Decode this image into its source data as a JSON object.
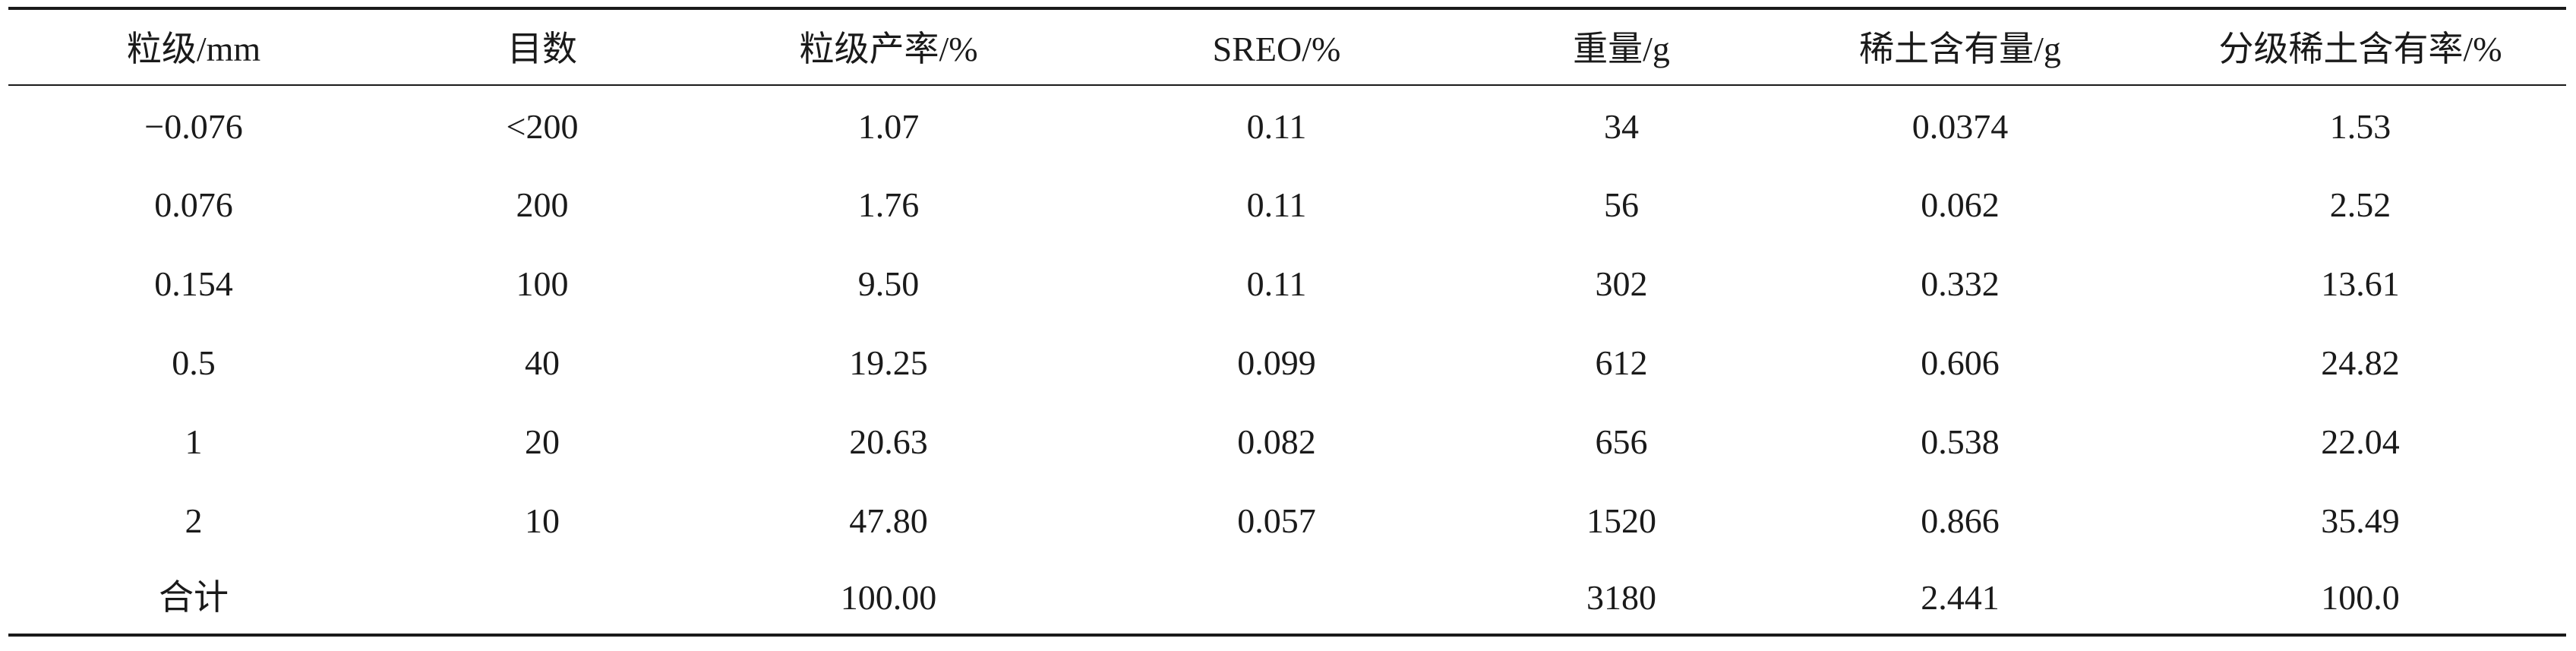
{
  "table": {
    "header": [
      "粒级/mm",
      "目数",
      "粒级产率/%",
      "SREO/%",
      "重量/g",
      "稀土含有量/g",
      "分级稀土含有率/%"
    ],
    "rows": [
      [
        "−0.076",
        "<200",
        "1.07",
        "0.11",
        "34",
        "0.0374",
        "1.53"
      ],
      [
        "0.076",
        "200",
        "1.76",
        "0.11",
        "56",
        "0.062",
        "2.52"
      ],
      [
        "0.154",
        "100",
        "9.50",
        "0.11",
        "302",
        "0.332",
        "13.61"
      ],
      [
        "0.5",
        "40",
        "19.25",
        "0.099",
        "612",
        "0.606",
        "24.82"
      ],
      [
        "1",
        "20",
        "20.63",
        "0.082",
        "656",
        "0.538",
        "22.04"
      ],
      [
        "2",
        "10",
        "47.80",
        "0.057",
        "1520",
        "0.866",
        "35.49"
      ],
      [
        "合计",
        null,
        "100.00",
        null,
        "3180",
        "2.441",
        "100.0"
      ]
    ]
  }
}
